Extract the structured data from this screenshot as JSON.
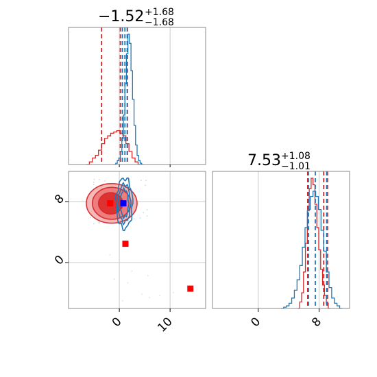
{
  "chart_data": [
    {
      "type": "histogram",
      "panel": "top-left",
      "title": {
        "base": "−1.52",
        "sup": "+1.68",
        "sub": "−1.68"
      },
      "x_range": [
        -10,
        17
      ],
      "series": [
        {
          "name": "",
          "color": "#d62728",
          "bins_start": -6.5,
          "bin_width": 0.6,
          "heights": [
            0.0,
            0.02,
            0.05,
            0.07,
            0.11,
            0.16,
            0.2,
            0.22,
            0.24,
            0.25,
            0.26,
            0.24,
            0.22,
            0.16,
            0.1,
            0.05,
            0.02,
            0.0
          ],
          "quantile_lines": [
            -3.5,
            0.2,
            1.6
          ]
        },
        {
          "name": "",
          "color": "#1f77b4",
          "bins_start": -1.0,
          "bin_width": 0.3,
          "heights": [
            0.0,
            0.01,
            0.03,
            0.05,
            0.1,
            0.2,
            0.38,
            0.62,
            0.85,
            1.0,
            0.93,
            0.72,
            0.5,
            0.3,
            0.15,
            0.07,
            0.03,
            0.01,
            0.0
          ],
          "quantile_lines": [
            0.6,
            1.1,
            1.55
          ]
        }
      ]
    },
    {
      "type": "scatter-contour",
      "panel": "bottom-left",
      "x_range": [
        -10,
        17
      ],
      "y_range": [
        -6,
        12
      ],
      "x_ticks": [
        0,
        10
      ],
      "y_ticks": [
        0,
        8
      ],
      "x_tick_labels": [
        "0",
        "10"
      ],
      "y_tick_labels": [
        "0",
        "8"
      ],
      "red_contours": [
        {
          "cx": -1.5,
          "cy": 7.8,
          "rx": 5.0,
          "ry": 2.6,
          "fill": "#f6b6b6"
        },
        {
          "cx": -1.5,
          "cy": 7.8,
          "rx": 3.8,
          "ry": 2.1,
          "fill": "#ef7a7a"
        },
        {
          "cx": -1.7,
          "cy": 7.8,
          "rx": 2.4,
          "ry": 1.4,
          "fill": "#dc2e2e"
        }
      ],
      "blue_contours": [
        {
          "cx": 1.0,
          "cy": 7.8,
          "rx": 1.6,
          "ry": 3.3
        },
        {
          "cx": 1.0,
          "cy": 7.8,
          "rx": 1.2,
          "ry": 2.5
        },
        {
          "cx": 1.0,
          "cy": 7.8,
          "rx": 0.8,
          "ry": 1.8
        }
      ],
      "red_markers": [
        {
          "x": -1.8,
          "y": 7.8
        },
        {
          "x": 1.2,
          "y": 2.5
        },
        {
          "x": 14.0,
          "y": -3.4
        }
      ],
      "blue_markers": [
        {
          "x": 0.8,
          "y": 7.8
        }
      ]
    },
    {
      "type": "histogram",
      "panel": "bottom-right",
      "title": {
        "base": "7.53",
        "sup": "+1.08",
        "sub": "−1.01"
      },
      "x_range": [
        -6,
        12
      ],
      "x_ticks": [
        0,
        8
      ],
      "x_tick_labels": [
        "0",
        "8"
      ],
      "series": [
        {
          "name": "",
          "color": "#d62728",
          "bins_start": 5.2,
          "bin_width": 0.25,
          "heights": [
            0.0,
            0.05,
            0.12,
            0.28,
            0.5,
            0.75,
            0.92,
            1.0,
            0.95,
            0.8,
            0.62,
            0.45,
            0.3,
            0.18,
            0.1,
            0.04,
            0.0
          ],
          "quantile_lines": [
            6.5,
            8.6,
            9.1
          ]
        },
        {
          "name": "",
          "color": "#1f77b4",
          "bins_start": 3.0,
          "bin_width": 0.35,
          "heights": [
            0.0,
            0.01,
            0.02,
            0.04,
            0.08,
            0.14,
            0.22,
            0.33,
            0.47,
            0.62,
            0.76,
            0.86,
            0.9,
            0.86,
            0.76,
            0.6,
            0.44,
            0.28,
            0.16,
            0.08,
            0.04,
            0.02,
            0.0
          ],
          "quantile_lines": [
            6.6,
            7.5,
            9.0
          ]
        }
      ]
    }
  ]
}
